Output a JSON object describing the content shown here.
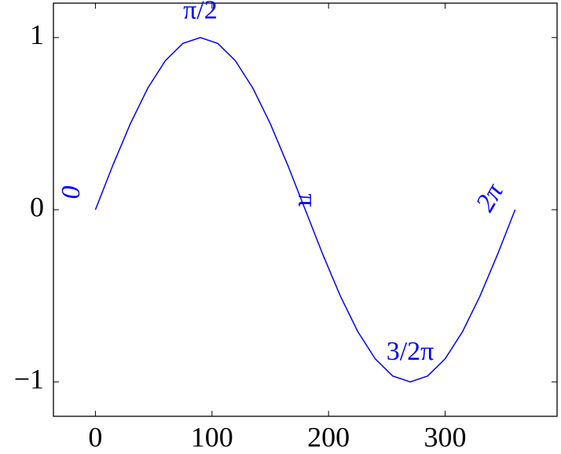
{
  "chart_data": {
    "type": "line",
    "x": [
      0,
      15,
      30,
      45,
      60,
      75,
      90,
      105,
      120,
      135,
      150,
      165,
      180,
      195,
      210,
      225,
      240,
      255,
      270,
      285,
      300,
      315,
      330,
      345,
      360
    ],
    "series": [
      {
        "color": "#0000ff",
        "values": [
          0,
          0.2588,
          0.5,
          0.7071,
          0.866,
          0.9659,
          1,
          0.9659,
          0.866,
          0.7071,
          0.5,
          0.2588,
          0,
          -0.2588,
          -0.5,
          -0.7071,
          -0.866,
          -0.9659,
          -1,
          -0.9659,
          -0.866,
          -0.7071,
          -0.5,
          -0.2588,
          0
        ]
      }
    ],
    "xlim": [
      -36,
      396
    ],
    "ylim": [
      -1.2,
      1.2
    ],
    "xticks": [
      0,
      100,
      200,
      300
    ],
    "yticks": [
      {
        "value": -1,
        "label": "−1"
      },
      0,
      1
    ],
    "annotations": [
      {
        "text": "0",
        "x": 0,
        "y": 0
      },
      {
        "text": "π/2",
        "x": 90,
        "y": 1
      },
      {
        "text": "π",
        "x": 180,
        "y": 0
      },
      {
        "text": "3/2π",
        "x": 270,
        "y": -1
      },
      {
        "text": "2π",
        "x": 360,
        "y": 0
      }
    ]
  }
}
